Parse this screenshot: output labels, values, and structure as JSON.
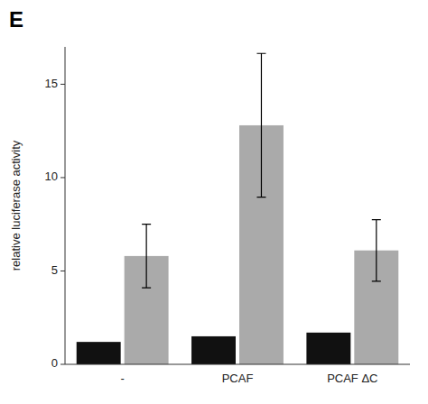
{
  "chart_data": {
    "type": "bar",
    "ylabel": "relative luciferase activity",
    "categories": [
      "-",
      "PCAF",
      "PCAF ΔC"
    ],
    "series": [
      {
        "color": "#111111",
        "values": [
          1.2,
          1.5,
          1.7
        ]
      },
      {
        "color": "#aaaaaa",
        "values": [
          5.8,
          12.8,
          6.1
        ],
        "errors": [
          1.7,
          3.85,
          1.65
        ]
      }
    ],
    "ylim": [
      0,
      17
    ],
    "yticks": [
      0,
      5,
      10,
      15
    ],
    "grid": false,
    "annotations": [
      "E"
    ]
  }
}
